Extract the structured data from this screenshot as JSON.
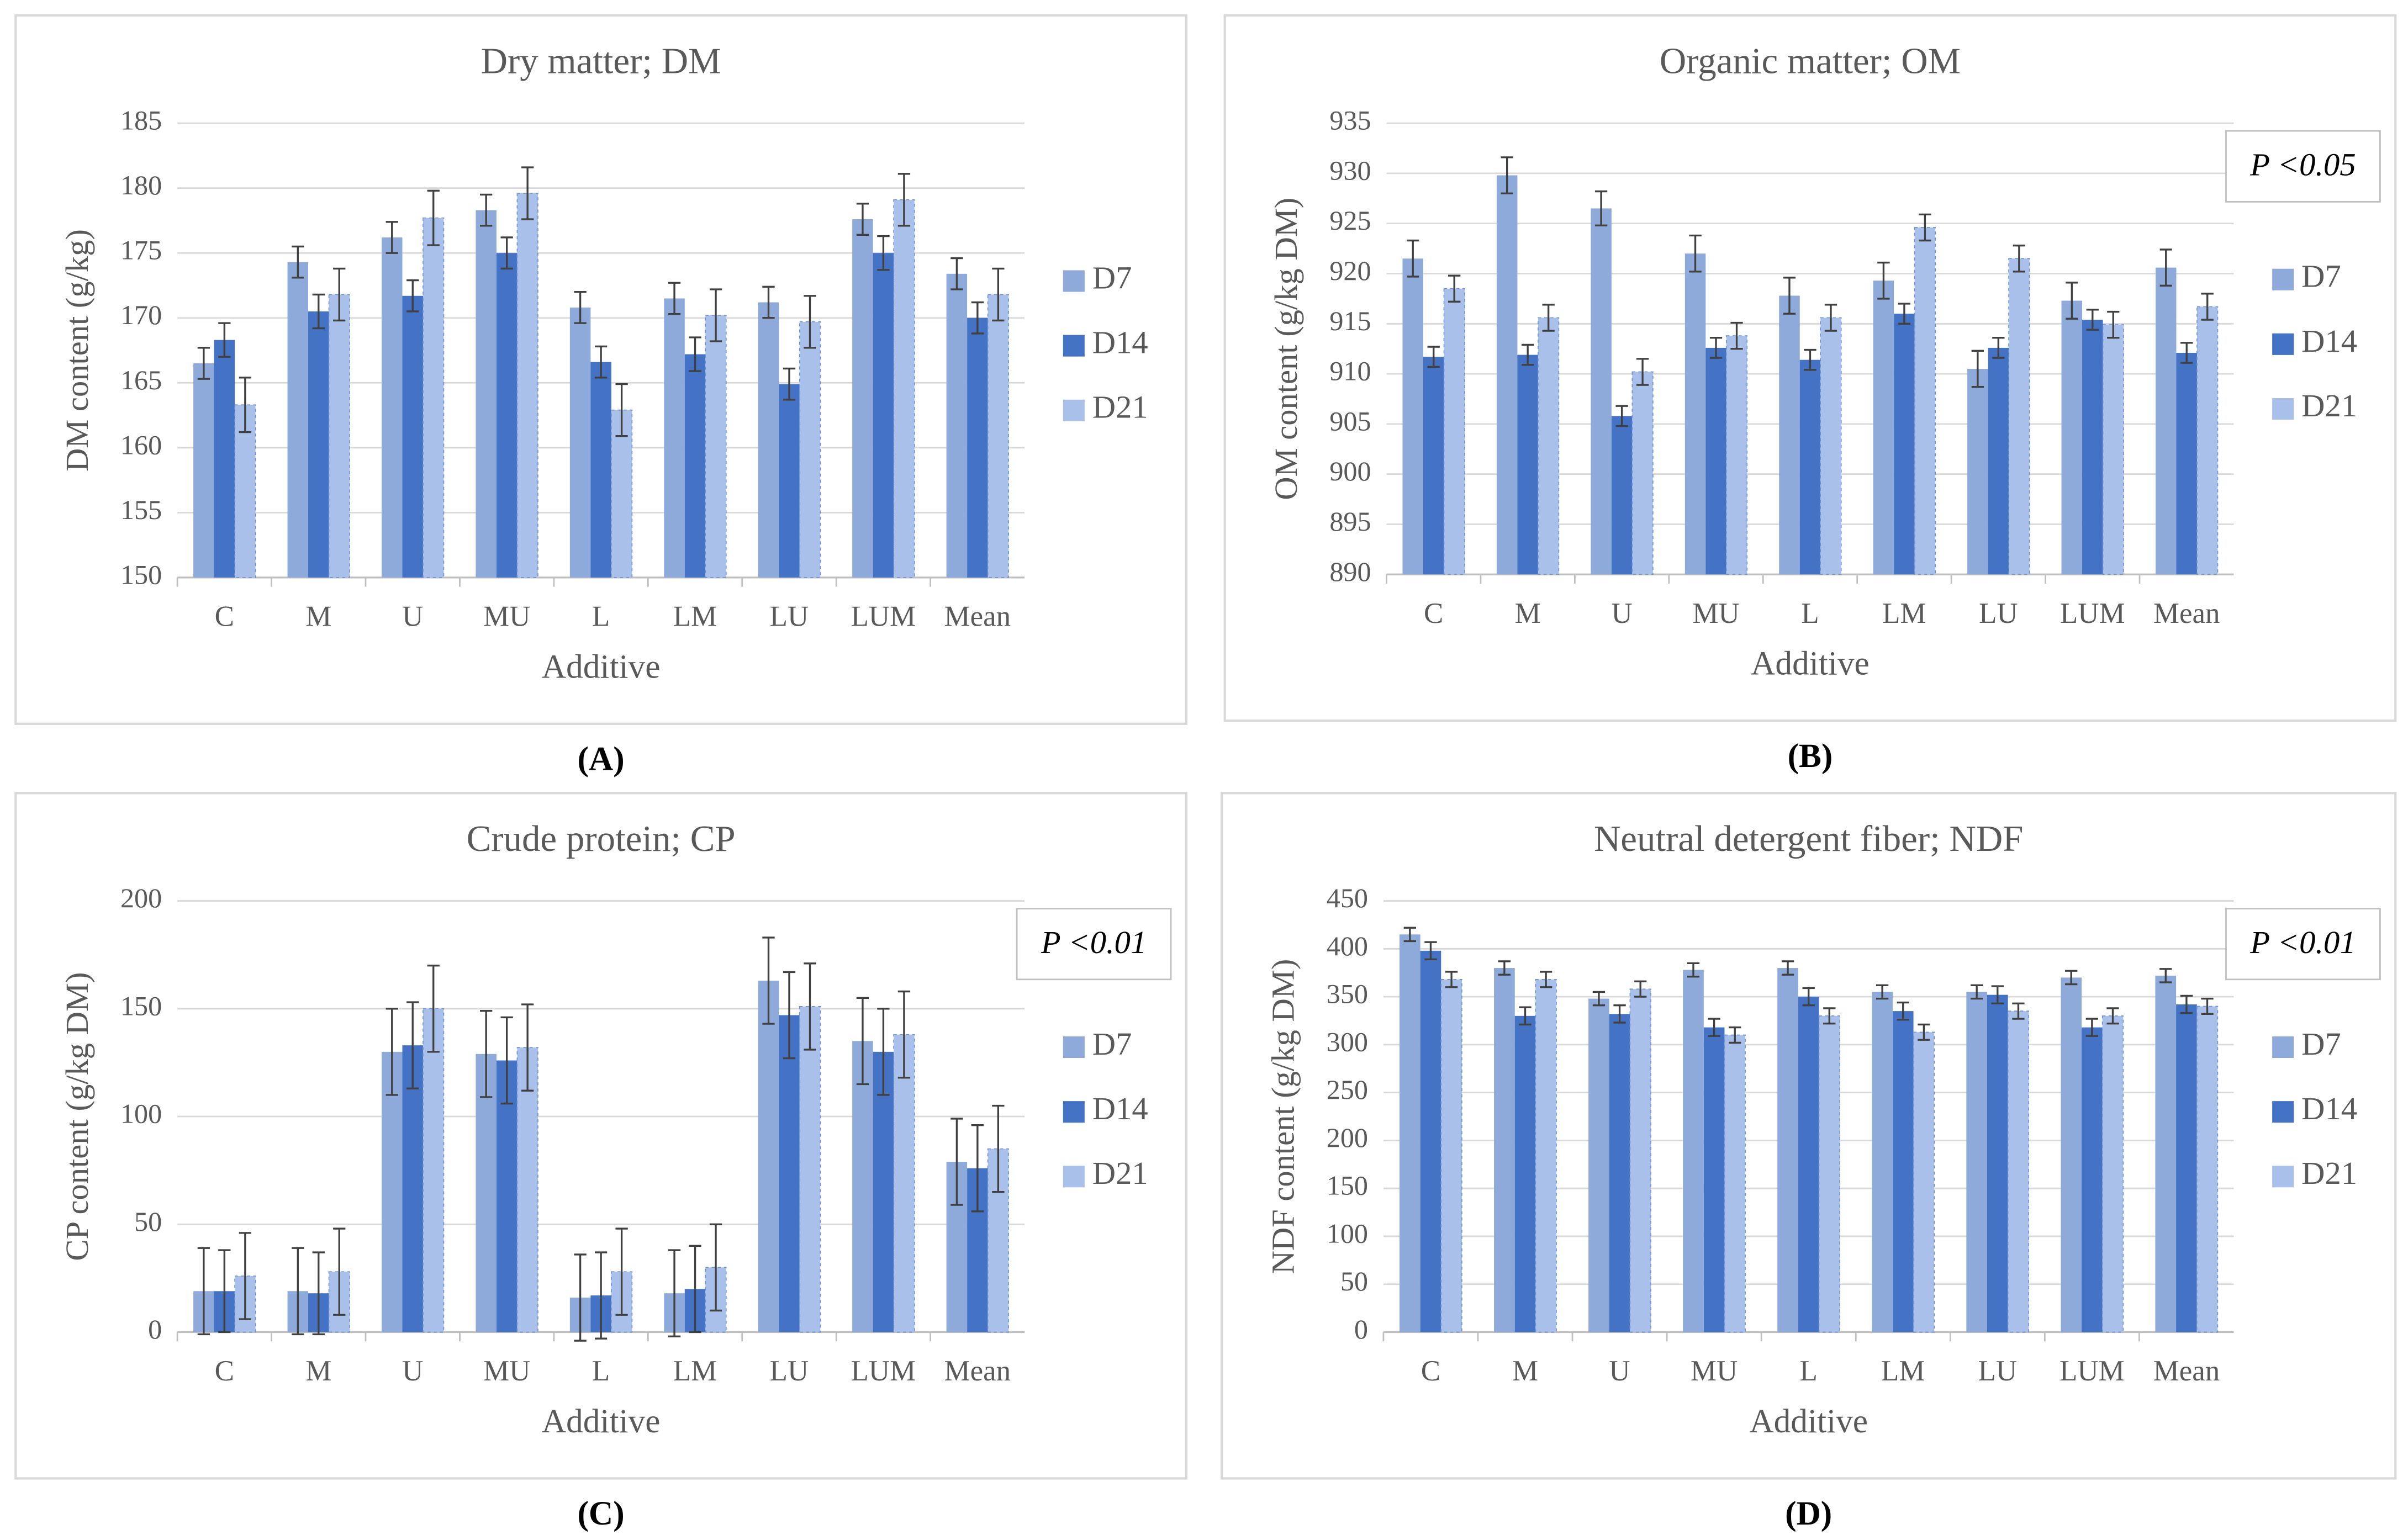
{
  "chart_data": [
    {
      "type": "bar",
      "panel_label": "(A)",
      "title": "Dry matter; DM",
      "x_label": "Additive",
      "y_label": "DM content (g/kg)",
      "categories": [
        "C",
        "M",
        "U",
        "MU",
        "L",
        "LM",
        "LU",
        "LUM",
        "Mean"
      ],
      "ylim": [
        150,
        185
      ],
      "yticks": [
        150,
        155,
        160,
        165,
        170,
        175,
        180,
        185
      ],
      "grid": true,
      "series": [
        {
          "name": "D7",
          "color": "#8eaadb",
          "values": [
            166.5,
            174.3,
            176.2,
            178.3,
            170.8,
            171.5,
            171.2,
            177.6,
            173.4
          ],
          "errors": [
            1.2,
            1.2,
            1.2,
            1.2,
            1.2,
            1.2,
            1.2,
            1.2,
            1.2
          ]
        },
        {
          "name": "D14",
          "color": "#4472c4",
          "values": [
            168.3,
            170.5,
            171.7,
            175.0,
            166.6,
            167.2,
            164.9,
            175.0,
            170.0
          ],
          "errors": [
            1.3,
            1.3,
            1.2,
            1.2,
            1.2,
            1.3,
            1.2,
            1.3,
            1.2
          ]
        },
        {
          "name": "D21",
          "color": "#a9c1ea",
          "values": [
            163.3,
            171.8,
            177.7,
            179.6,
            162.9,
            170.2,
            169.7,
            179.1,
            171.8
          ],
          "errors": [
            2.1,
            2.0,
            2.1,
            2.0,
            2.0,
            2.0,
            2.0,
            2.0,
            2.0
          ]
        }
      ]
    },
    {
      "type": "bar",
      "panel_label": "(B)",
      "title": "Organic matter; OM",
      "x_label": "Additive",
      "y_label": "OM content (g/kg DM)",
      "annotation": "P <0.05",
      "categories": [
        "C",
        "M",
        "U",
        "MU",
        "L",
        "LM",
        "LU",
        "LUM",
        "Mean"
      ],
      "ylim": [
        890,
        935
      ],
      "yticks": [
        890,
        895,
        900,
        905,
        910,
        915,
        920,
        925,
        930,
        935
      ],
      "grid": true,
      "series": [
        {
          "name": "D7",
          "color": "#8eaadb",
          "values": [
            921.5,
            929.8,
            926.5,
            922.0,
            917.8,
            919.3,
            910.5,
            917.3,
            920.6
          ],
          "errors": [
            1.8,
            1.8,
            1.7,
            1.8,
            1.8,
            1.8,
            1.8,
            1.8,
            1.8
          ]
        },
        {
          "name": "D14",
          "color": "#4472c4",
          "values": [
            911.7,
            911.9,
            905.8,
            912.6,
            911.4,
            916.0,
            912.6,
            915.4,
            912.1
          ],
          "errors": [
            1.0,
            1.0,
            1.0,
            1.0,
            1.0,
            1.0,
            1.0,
            1.0,
            1.0
          ]
        },
        {
          "name": "D21",
          "color": "#a9c1ea",
          "values": [
            918.5,
            915.6,
            910.2,
            913.8,
            915.6,
            924.6,
            921.5,
            914.9,
            916.7
          ],
          "errors": [
            1.3,
            1.3,
            1.3,
            1.3,
            1.3,
            1.3,
            1.3,
            1.3,
            1.3
          ]
        }
      ]
    },
    {
      "type": "bar",
      "panel_label": "(C)",
      "title": "Crude protein; CP",
      "x_label": "Additive",
      "y_label": "CP content (g/kg DM)",
      "annotation": "P <0.01",
      "categories": [
        "C",
        "M",
        "U",
        "MU",
        "L",
        "LM",
        "LU",
        "LUM",
        "Mean"
      ],
      "ylim": [
        0,
        200
      ],
      "yticks": [
        0,
        50,
        100,
        150,
        200
      ],
      "grid": true,
      "series": [
        {
          "name": "D7",
          "color": "#8eaadb",
          "values": [
            19,
            19,
            130,
            129,
            16,
            18,
            163,
            135,
            79
          ],
          "errors": [
            20,
            20,
            20,
            20,
            20,
            20,
            20,
            20,
            20
          ]
        },
        {
          "name": "D14",
          "color": "#4472c4",
          "values": [
            19,
            18,
            133,
            126,
            17,
            20,
            147,
            130,
            76
          ],
          "errors": [
            19,
            19,
            20,
            20,
            20,
            20,
            20,
            20,
            20
          ]
        },
        {
          "name": "D21",
          "color": "#a9c1ea",
          "values": [
            26,
            28,
            150,
            132,
            28,
            30,
            151,
            138,
            85
          ],
          "errors": [
            20,
            20,
            20,
            20,
            20,
            20,
            20,
            20,
            20
          ]
        }
      ]
    },
    {
      "type": "bar",
      "panel_label": "(D)",
      "title": "Neutral detergent fiber; NDF",
      "x_label": "Additive",
      "y_label": "NDF content (g/kg DM)",
      "annotation": "P <0.01",
      "categories": [
        "C",
        "M",
        "U",
        "MU",
        "L",
        "LM",
        "LU",
        "LUM",
        "Mean"
      ],
      "ylim": [
        0,
        450
      ],
      "yticks": [
        0,
        50,
        100,
        150,
        200,
        250,
        300,
        350,
        400,
        450
      ],
      "grid": true,
      "series": [
        {
          "name": "D7",
          "color": "#8eaadb",
          "values": [
            415,
            380,
            348,
            378,
            380,
            355,
            355,
            370,
            372
          ],
          "errors": [
            7,
            7,
            7,
            7,
            7,
            7,
            7,
            7,
            7
          ]
        },
        {
          "name": "D14",
          "color": "#4472c4",
          "values": [
            398,
            330,
            332,
            318,
            350,
            335,
            352,
            318,
            342
          ],
          "errors": [
            9,
            9,
            9,
            9,
            9,
            9,
            9,
            9,
            9
          ]
        },
        {
          "name": "D21",
          "color": "#a9c1ea",
          "values": [
            368,
            368,
            358,
            310,
            330,
            313,
            335,
            330,
            340
          ],
          "errors": [
            8,
            8,
            8,
            8,
            8,
            8,
            8,
            8,
            8
          ]
        }
      ]
    }
  ]
}
